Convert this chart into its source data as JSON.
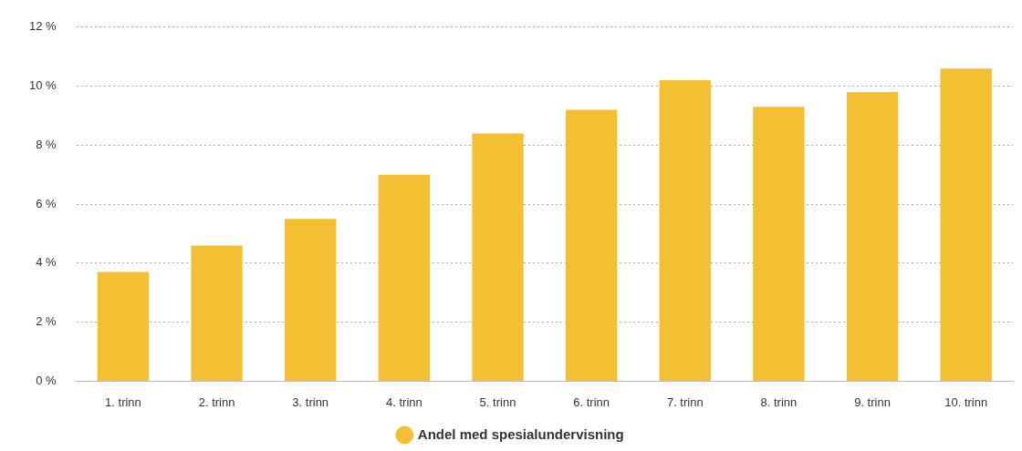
{
  "chart_data": {
    "type": "bar",
    "categories": [
      "1. trinn",
      "2. trinn",
      "3. trinn",
      "4. trinn",
      "5. trinn",
      "6. trinn",
      "7. trinn",
      "8. trinn",
      "9. trinn",
      "10. trinn"
    ],
    "series": [
      {
        "name": "Andel med spesialundervisning",
        "color": "#f4c033",
        "values": [
          3.7,
          4.6,
          5.5,
          7.0,
          8.4,
          9.2,
          10.2,
          9.3,
          9.8,
          10.6
        ]
      }
    ],
    "ylim": [
      0,
      12
    ],
    "yticks": [
      {
        "value": 0,
        "label": "0 %"
      },
      {
        "value": 2,
        "label": "2 %"
      },
      {
        "value": 4,
        "label": "4 %"
      },
      {
        "value": 6,
        "label": "6 %"
      },
      {
        "value": 8,
        "label": "8 %"
      },
      {
        "value": 10,
        "label": "10 %"
      },
      {
        "value": 12,
        "label": "12 %"
      }
    ],
    "grid": "y",
    "legend": "bottom",
    "marker": "circle"
  }
}
